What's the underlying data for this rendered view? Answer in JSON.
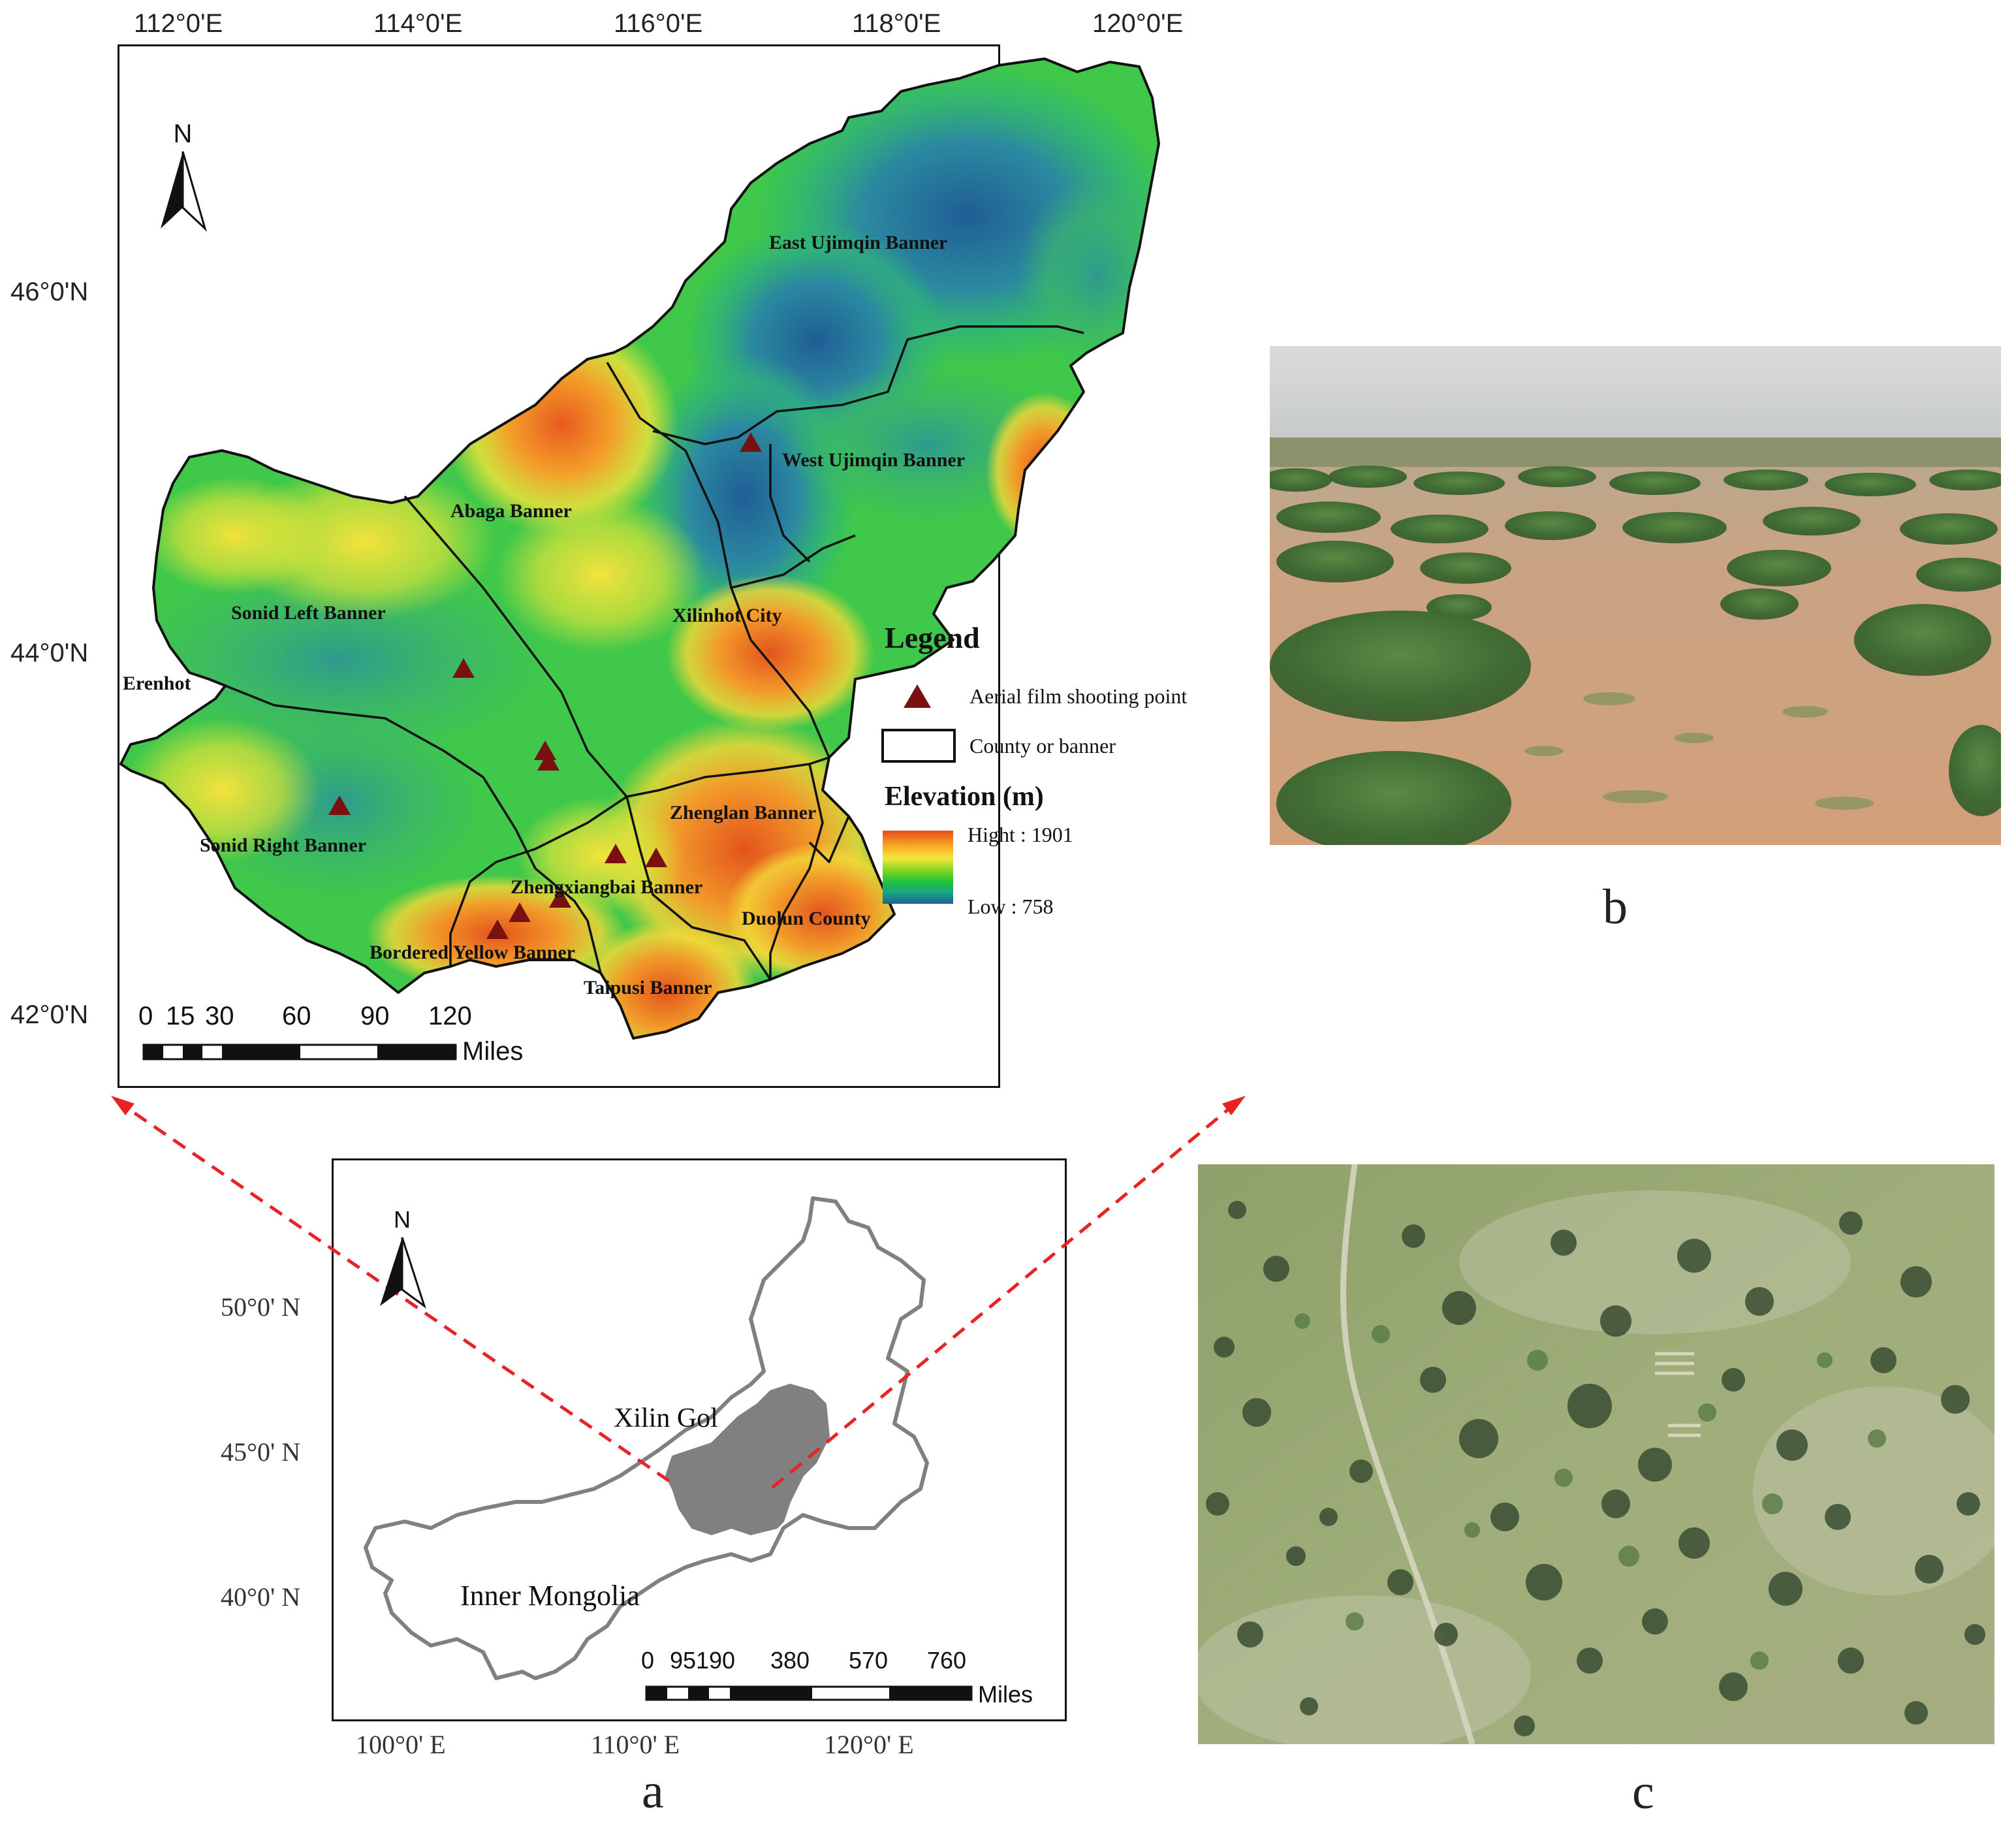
{
  "panel_a": {
    "letter": "a",
    "detail_map": {
      "lon_ticks": [
        "112°0'E",
        "114°0'E",
        "116°0'E",
        "118°0'E",
        "120°0'E"
      ],
      "lat_ticks": [
        "46°0'N",
        "44°0'N",
        "42°0'N"
      ],
      "region_labels": {
        "east_ujimqin": "East Ujimqin Banner",
        "west_ujimqin": "West  Ujimqin Banner",
        "abaga": "Abaga Banner",
        "sonid_left": "Sonid Left Banner",
        "erenhot": "Erenhot",
        "xilinhot": "Xilinhot City",
        "sonid_right": "Sonid Right Banner",
        "zhenglan": "Zhenglan Banner",
        "zhengxiangbai": "Zhengxiangbai Banner",
        "duolun": "Duolun County",
        "bordered_yellow": "Bordered Yellow Banner",
        "taipusi": "Taipusi Banner"
      },
      "north_arrow": "N",
      "scale_bar": {
        "ticks": [
          "0",
          "15",
          "30",
          "60",
          "90",
          "120"
        ],
        "unit": "Miles"
      },
      "legend": {
        "title": "Legend",
        "items": [
          {
            "symbol": "triangle-marker-icon",
            "label": "Aerial film shooting point"
          },
          {
            "symbol": "rectangle-outline-icon",
            "label": "County or banner"
          }
        ],
        "elevation_title": "Elevation (m)",
        "elevation_high": "Hight : 1901",
        "elevation_low": "Low : 758"
      },
      "colors": {
        "marker": "#7a1010",
        "boundary": "#111111",
        "ramp": [
          "#e64a19",
          "#f5a623",
          "#f5e63a",
          "#7ed321",
          "#1fc43a",
          "#19a383",
          "#1f6e9c"
        ]
      }
    },
    "locator_map": {
      "lat_ticks": [
        "50°0' N",
        "45°0' N",
        "40°0' N"
      ],
      "lon_ticks": [
        "100°0' E",
        "110°0' E",
        "120°0' E"
      ],
      "labels": {
        "xilin_gol": "Xilin Gol",
        "inner_mongolia": "Inner Mongolia"
      },
      "north_arrow": "N",
      "scale_bar": {
        "ticks": [
          "0",
          "95",
          "190",
          "380",
          "570",
          "760"
        ],
        "unit": "Miles"
      },
      "colors": {
        "highlight": "#808080",
        "outline": "#808080",
        "connector": "#e82323"
      }
    }
  },
  "panel_b": {
    "letter": "b",
    "photo": "ground-level-shrub-grassland-photo"
  },
  "panel_c": {
    "letter": "c",
    "photo": "aerial-shrub-grassland-photo"
  }
}
